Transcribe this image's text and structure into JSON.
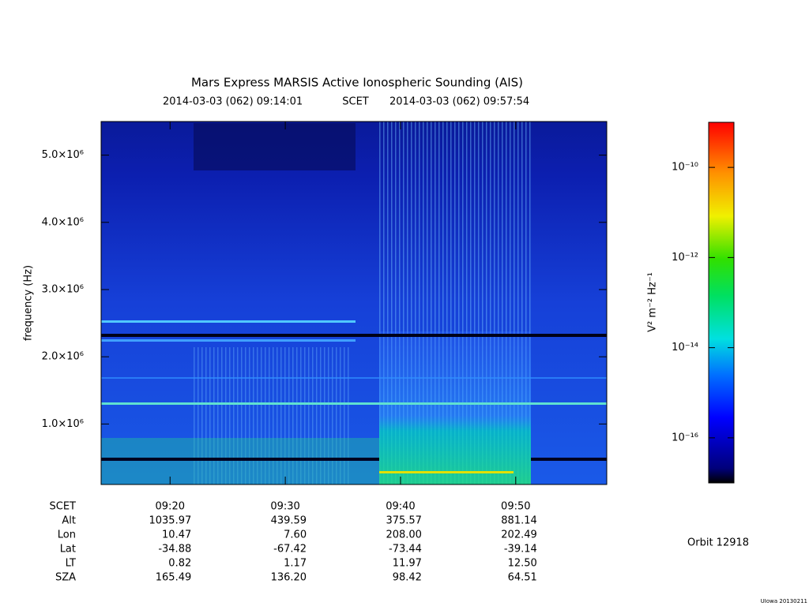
{
  "chart_data": {
    "type": "spectrogram",
    "title": "Mars Express MARSIS Active Ionospheric Sounding (AIS)",
    "start_label": "2014-03-03 (062) 09:14:01",
    "time_label": "SCET",
    "end_label": "2014-03-03 (062) 09:57:54",
    "y_label": "frequency (Hz)",
    "xlim": [
      "09:14:01",
      "09:57:54"
    ],
    "xticks": [
      "09:20",
      "09:30",
      "09:40",
      "09:50"
    ],
    "ylim": [
      100000,
      5500000
    ],
    "yticks": [
      {
        "value": 1000000,
        "label": "1.0×10⁶"
      },
      {
        "value": 2000000,
        "label": "2.0×10⁶"
      },
      {
        "value": 3000000,
        "label": "3.0×10⁶"
      },
      {
        "value": 4000000,
        "label": "4.0×10⁶"
      },
      {
        "value": 5000000,
        "label": "5.0×10⁶"
      }
    ],
    "colorbar": {
      "label": "V² m⁻² Hz⁻¹",
      "log_scale": true,
      "zlim": [
        1e-17,
        1e-09
      ],
      "ticks": [
        {
          "value": 1e-10,
          "label": "10⁻¹⁰"
        },
        {
          "value": 1e-12,
          "label": "10⁻¹²"
        },
        {
          "value": 1e-14,
          "label": "10⁻¹⁴"
        },
        {
          "value": 1e-16,
          "label": "10⁻¹⁶"
        }
      ]
    },
    "ephemeris": {
      "row_labels": [
        "SCET",
        "Alt",
        "Lon",
        "Lat",
        "LT",
        "SZA"
      ],
      "rows": [
        [
          "1035.97",
          "439.59",
          "375.57",
          "881.14"
        ],
        [
          "10.47",
          "7.60",
          "208.00",
          "202.49"
        ],
        [
          "-34.88",
          "-67.42",
          "-73.44",
          "-39.14"
        ],
        [
          "0.82",
          "1.17",
          "11.97",
          "12.50"
        ],
        [
          "165.49",
          "136.20",
          "98.42",
          "64.51"
        ]
      ]
    },
    "orbit": "Orbit 12918",
    "footer": "UIowa 20130211"
  }
}
